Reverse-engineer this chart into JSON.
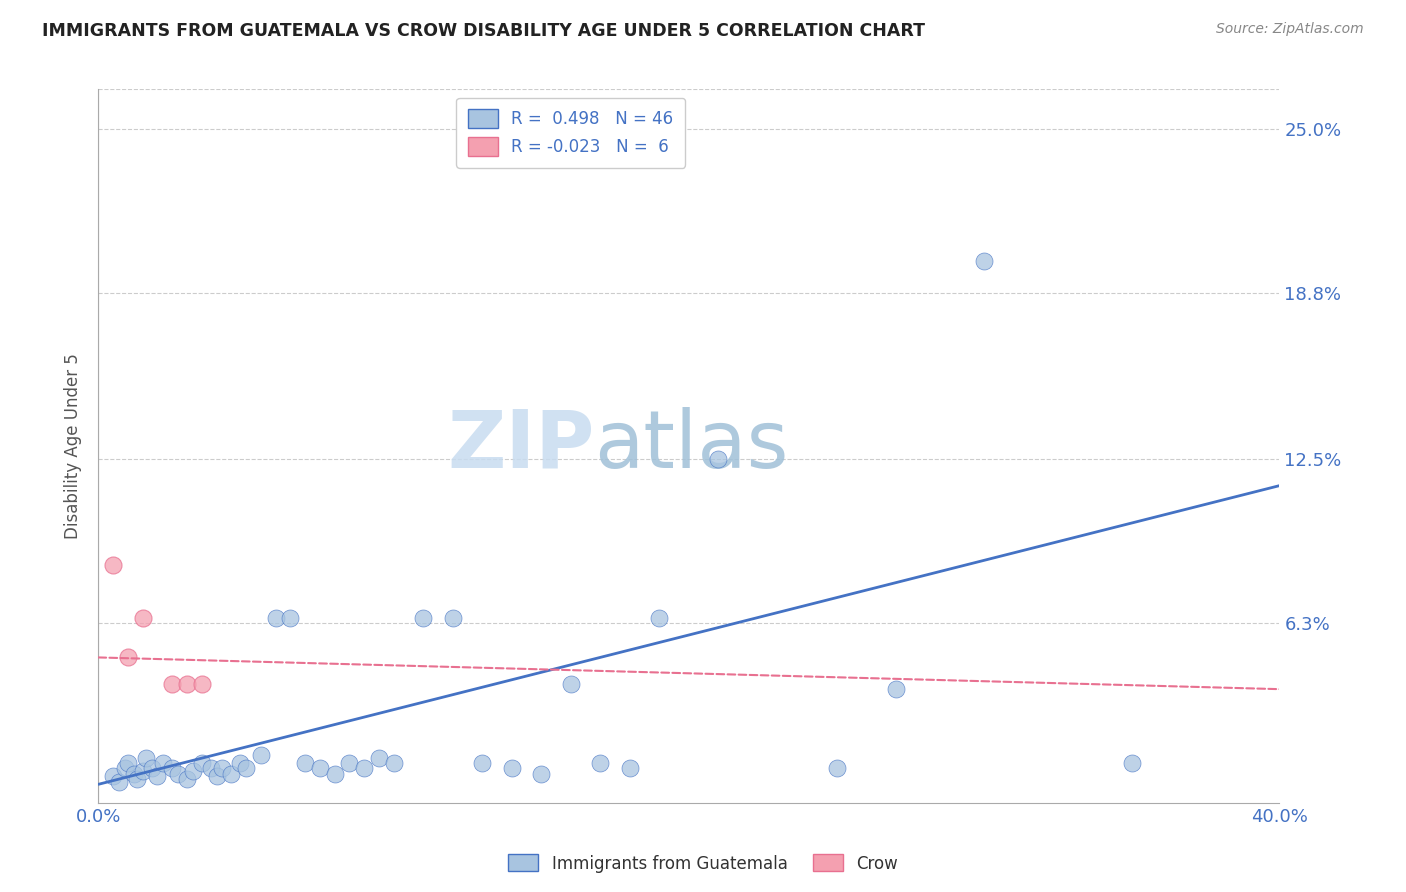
{
  "title": "IMMIGRANTS FROM GUATEMALA VS CROW DISABILITY AGE UNDER 5 CORRELATION CHART",
  "source": "Source: ZipAtlas.com",
  "ylabel_label": "Disability Age Under 5",
  "ylabel_ticks": [
    0.0,
    0.063,
    0.125,
    0.188,
    0.25
  ],
  "ylabel_tick_labels": [
    "",
    "6.3%",
    "12.5%",
    "18.8%",
    "25.0%"
  ],
  "xlim": [
    0.0,
    0.4
  ],
  "ylim": [
    -0.005,
    0.265
  ],
  "legend_blue_r": "0.498",
  "legend_blue_n": "46",
  "legend_pink_r": "-0.023",
  "legend_pink_n": "6",
  "watermark_zip": "ZIP",
  "watermark_atlas": "atlas",
  "blue_scatter_x": [
    0.005,
    0.007,
    0.009,
    0.01,
    0.012,
    0.013,
    0.015,
    0.016,
    0.018,
    0.02,
    0.022,
    0.025,
    0.027,
    0.03,
    0.032,
    0.035,
    0.038,
    0.04,
    0.042,
    0.045,
    0.048,
    0.05,
    0.055,
    0.06,
    0.065,
    0.07,
    0.075,
    0.08,
    0.085,
    0.09,
    0.095,
    0.1,
    0.11,
    0.12,
    0.13,
    0.14,
    0.15,
    0.16,
    0.17,
    0.18,
    0.19,
    0.21,
    0.25,
    0.27,
    0.3,
    0.35
  ],
  "blue_scatter_y": [
    0.005,
    0.003,
    0.008,
    0.01,
    0.006,
    0.004,
    0.007,
    0.012,
    0.008,
    0.005,
    0.01,
    0.008,
    0.006,
    0.004,
    0.007,
    0.01,
    0.008,
    0.005,
    0.008,
    0.006,
    0.01,
    0.008,
    0.013,
    0.065,
    0.065,
    0.01,
    0.008,
    0.006,
    0.01,
    0.008,
    0.012,
    0.01,
    0.065,
    0.065,
    0.01,
    0.008,
    0.006,
    0.04,
    0.01,
    0.008,
    0.065,
    0.125,
    0.008,
    0.038,
    0.2,
    0.01
  ],
  "pink_scatter_x": [
    0.005,
    0.01,
    0.015,
    0.025,
    0.03,
    0.035
  ],
  "pink_scatter_y": [
    0.085,
    0.05,
    0.065,
    0.04,
    0.04,
    0.04
  ],
  "blue_line_x": [
    0.0,
    0.4
  ],
  "blue_line_y": [
    0.002,
    0.115
  ],
  "pink_line_x": [
    0.0,
    0.4
  ],
  "pink_line_y": [
    0.05,
    0.038
  ],
  "blue_color": "#A8C4E0",
  "pink_color": "#F4A0B0",
  "blue_fill_color": "#7BAFD4",
  "blue_line_color": "#4472C4",
  "pink_line_color": "#E87090",
  "grid_color": "#CCCCCC",
  "background_color": "#FFFFFF",
  "tick_color": "#4472C4",
  "title_color": "#222222",
  "source_color": "#888888"
}
